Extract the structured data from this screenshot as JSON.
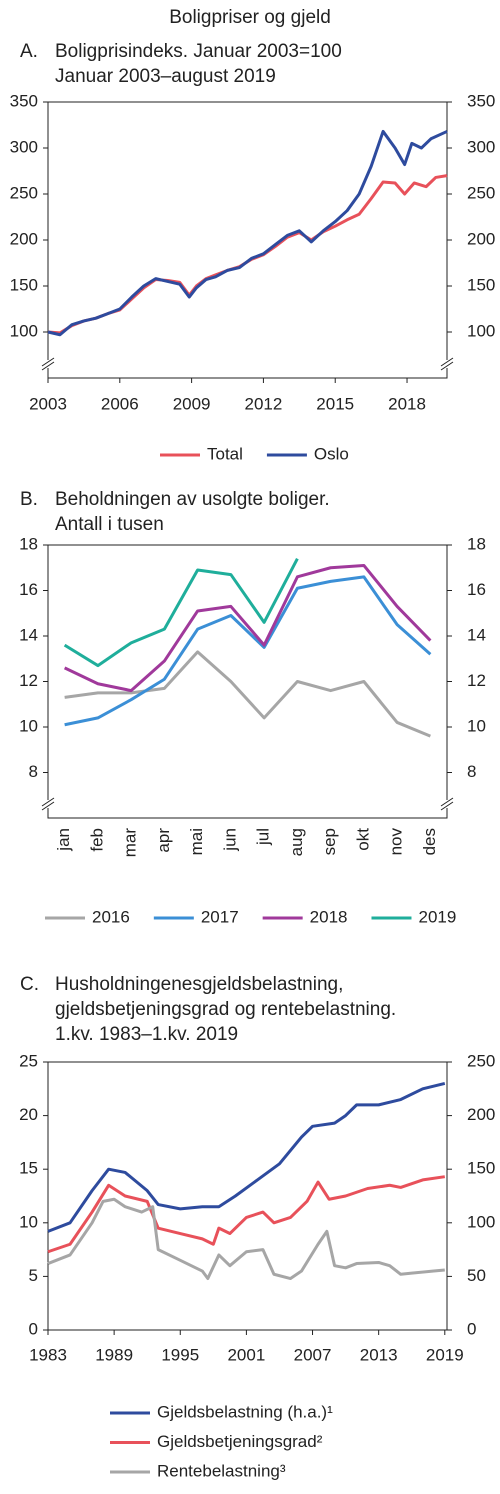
{
  "title": "Boligpriser og gjeld",
  "chart_data": [
    {
      "type": "line",
      "label": "A.",
      "title_lines": [
        "Boligprisindeks. Januar 2003=100",
        "Januar 2003–august 2019"
      ],
      "xlim": [
        2003,
        2019.67
      ],
      "xticks": [
        2003,
        2006,
        2009,
        2012,
        2015,
        2018
      ],
      "ylim": [
        50,
        350
      ],
      "yticks": [
        100,
        150,
        200,
        250,
        300,
        350
      ],
      "y2lim": [
        50,
        350
      ],
      "y2ticks": [
        100,
        150,
        200,
        250,
        300,
        350
      ],
      "axis_break": true,
      "series": [
        {
          "name": "Total",
          "color": "#e8515a",
          "x": [
            2003,
            2003.5,
            2004,
            2004.5,
            2005,
            2005.5,
            2006,
            2006.5,
            2007,
            2007.5,
            2008,
            2008.5,
            2008.9,
            2009.2,
            2009.6,
            2010,
            2010.5,
            2011,
            2011.5,
            2012,
            2012.5,
            2013,
            2013.5,
            2014,
            2014.5,
            2015,
            2015.5,
            2016,
            2016.5,
            2017,
            2017.5,
            2017.9,
            2018.3,
            2018.8,
            2019.2,
            2019.67
          ],
          "values": [
            100,
            99,
            107,
            112,
            115,
            120,
            124,
            136,
            148,
            157,
            156,
            154,
            140,
            150,
            158,
            162,
            167,
            171,
            179,
            184,
            193,
            203,
            208,
            200,
            209,
            215,
            222,
            228,
            245,
            263,
            262,
            250,
            262,
            258,
            268,
            270
          ]
        },
        {
          "name": "Oslo",
          "color": "#2e4b9e",
          "x": [
            2003,
            2003.5,
            2004,
            2004.5,
            2005,
            2005.5,
            2006,
            2006.5,
            2007,
            2007.5,
            2008,
            2008.5,
            2008.9,
            2009.2,
            2009.6,
            2010,
            2010.5,
            2011,
            2011.5,
            2012,
            2012.5,
            2013,
            2013.5,
            2014,
            2014.5,
            2015,
            2015.5,
            2016,
            2016.5,
            2017,
            2017.5,
            2017.9,
            2018.2,
            2018.6,
            2019,
            2019.67
          ],
          "values": [
            100,
            97,
            108,
            112,
            115,
            120,
            125,
            138,
            150,
            158,
            155,
            152,
            138,
            148,
            157,
            160,
            167,
            170,
            180,
            185,
            195,
            205,
            210,
            198,
            210,
            220,
            232,
            250,
            280,
            318,
            300,
            282,
            305,
            300,
            310,
            318
          ]
        }
      ]
    },
    {
      "type": "line",
      "label": "B.",
      "title_lines": [
        "Beholdningen av usolgte boliger.",
        "Antall i tusen"
      ],
      "categories": [
        "jan",
        "feb",
        "mar",
        "apr",
        "mai",
        "jun",
        "jul",
        "aug",
        "sep",
        "okt",
        "nov",
        "des"
      ],
      "ylim": [
        6,
        18
      ],
      "yticks": [
        8,
        10,
        12,
        14,
        16,
        18
      ],
      "y2lim": [
        6,
        18
      ],
      "y2ticks": [
        8,
        10,
        12,
        14,
        16,
        18
      ],
      "axis_break": true,
      "series": [
        {
          "name": "2016",
          "color": "#a6a6a6",
          "values": [
            11.3,
            11.5,
            11.5,
            11.7,
            13.3,
            12.0,
            10.4,
            12.0,
            11.6,
            12.0,
            10.2,
            9.6
          ]
        },
        {
          "name": "2017",
          "color": "#3b8fd6",
          "values": [
            10.1,
            10.4,
            11.2,
            12.1,
            14.3,
            14.9,
            13.5,
            16.1,
            16.4,
            16.6,
            14.5,
            13.2
          ]
        },
        {
          "name": "2018",
          "color": "#a0399b",
          "values": [
            12.6,
            11.9,
            11.6,
            12.9,
            15.1,
            15.3,
            13.6,
            16.6,
            17.0,
            17.1,
            15.3,
            13.8
          ]
        },
        {
          "name": "2019",
          "color": "#1fae9b",
          "values": [
            13.6,
            12.7,
            13.7,
            14.3,
            16.9,
            16.7,
            14.6,
            17.4,
            null,
            null,
            null,
            null
          ]
        }
      ]
    },
    {
      "type": "line",
      "label": "C.",
      "title_lines": [
        "Husholdningenesgjeldsbelastning,",
        "gjeldsbetjeningsgrad og rentebelastning.",
        "1.kv. 1983–1.kv. 2019"
      ],
      "xlim": [
        1983,
        2019.2
      ],
      "xticks": [
        1983,
        1989,
        1995,
        2001,
        2007,
        2013,
        2019
      ],
      "ylim": [
        0,
        25
      ],
      "yticks": [
        0,
        5,
        10,
        15,
        20,
        25
      ],
      "y2lim": [
        0,
        250
      ],
      "y2ticks": [
        0,
        50,
        100,
        150,
        200,
        250
      ],
      "legend": "bottom-left",
      "series": [
        {
          "name": "Gjeldsbelastning (h.a.)¹",
          "color": "#2e4b9e",
          "axis": "y2",
          "x": [
            1983,
            1985,
            1987,
            1988.5,
            1990,
            1992,
            1993,
            1995,
            1997,
            1998.5,
            2000,
            2002,
            2004,
            2006,
            2007,
            2009,
            2010,
            2011,
            2013,
            2015,
            2017,
            2019
          ],
          "values": [
            92,
            100,
            130,
            150,
            147,
            130,
            117,
            113,
            115,
            115,
            125,
            140,
            155,
            180,
            190,
            193,
            200,
            210,
            210,
            215,
            225,
            230
          ]
        },
        {
          "name": "Gjeldsbetjeningsgrad²",
          "color": "#e8515a",
          "x": [
            1983,
            1985,
            1987,
            1988.5,
            1990,
            1992,
            1993,
            1995,
            1997,
            1998,
            1998.5,
            1999.5,
            2001,
            2002.5,
            2003.5,
            2005,
            2006.5,
            2007.5,
            2008.5,
            2010,
            2012,
            2014,
            2015,
            2017,
            2019
          ],
          "values": [
            7.3,
            8,
            11,
            13.5,
            12.5,
            12,
            9.5,
            9,
            8.5,
            8.0,
            9.5,
            9,
            10.5,
            11,
            10,
            10.5,
            12,
            13.8,
            12.2,
            12.5,
            13.2,
            13.5,
            13.3,
            14,
            14.3
          ]
        },
        {
          "name": "Rentebelastning³",
          "color": "#a6a6a6",
          "x": [
            1983,
            1985,
            1987,
            1988,
            1989,
            1990,
            1991.5,
            1992.5,
            1993,
            1995,
            1997,
            1997.5,
            1998.5,
            1999.5,
            2001,
            2002.5,
            2003.5,
            2005,
            2006,
            2007.5,
            2008.3,
            2009,
            2010,
            2011,
            2013,
            2014,
            2015,
            2016,
            2018,
            2019
          ],
          "values": [
            6.2,
            7,
            10,
            12,
            12.2,
            11.5,
            11,
            11.5,
            7.5,
            6.5,
            5.5,
            4.8,
            7,
            6,
            7.3,
            7.5,
            5.2,
            4.8,
            5.5,
            8,
            9.2,
            6,
            5.8,
            6.2,
            6.3,
            6,
            5.2,
            5.3,
            5.5,
            5.6
          ]
        }
      ]
    }
  ]
}
